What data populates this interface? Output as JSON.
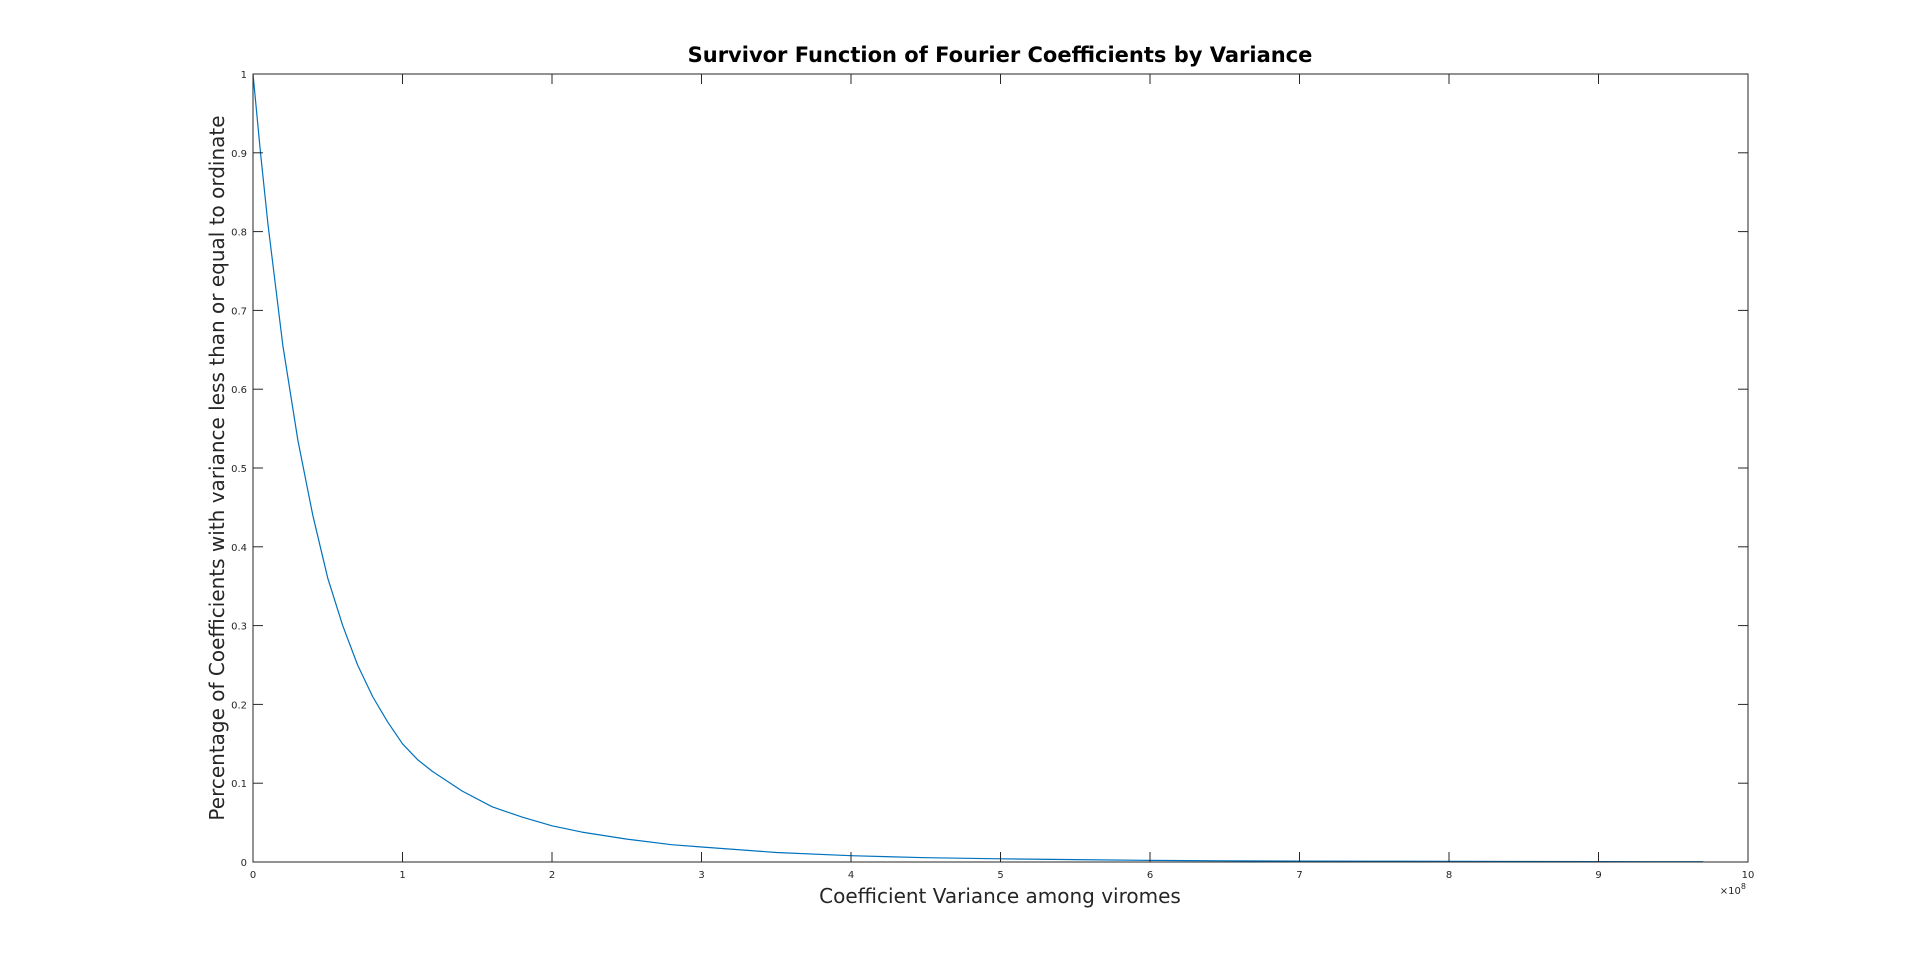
{
  "chart_data": {
    "type": "line",
    "title": "Survivor Function of Fourier Coefficients by Variance",
    "xlabel": "Coefficient Variance among viromes",
    "ylabel": "Percentage of Coefficients with variance less than or equal to ordinate",
    "x_exponent_label": "×10",
    "x_exponent_power": "8",
    "xlim": [
      0,
      10
    ],
    "ylim": [
      0,
      1
    ],
    "x_ticks": [
      "0",
      "1",
      "2",
      "3",
      "4",
      "5",
      "6",
      "7",
      "8",
      "9",
      "10"
    ],
    "y_ticks": [
      "0",
      "0.1",
      "0.2",
      "0.3",
      "0.4",
      "0.5",
      "0.6",
      "0.7",
      "0.8",
      "0.9",
      "1"
    ],
    "grid": false,
    "legend": "none",
    "line_color": "#0072BD",
    "series": [
      {
        "x": [
          0,
          0.05,
          0.1,
          0.2,
          0.3,
          0.4,
          0.5,
          0.6,
          0.7,
          0.8,
          0.9,
          1.0,
          1.1,
          1.2,
          1.4,
          1.6,
          1.8,
          2.0,
          2.2,
          2.5,
          2.8,
          3.0,
          3.5,
          4.0,
          4.5,
          5.0,
          5.5,
          6.0,
          6.5,
          7.0,
          7.5,
          8.0,
          8.5,
          9.0,
          9.5,
          9.7
        ],
        "y": [
          1.0,
          0.9,
          0.81,
          0.655,
          0.535,
          0.44,
          0.36,
          0.3,
          0.25,
          0.21,
          0.178,
          0.15,
          0.13,
          0.115,
          0.09,
          0.07,
          0.057,
          0.046,
          0.038,
          0.029,
          0.022,
          0.019,
          0.012,
          0.008,
          0.0055,
          0.004,
          0.003,
          0.002,
          0.0015,
          0.0012,
          0.001,
          0.0008,
          0.0006,
          0.0005,
          0.0004,
          0.0004
        ]
      }
    ]
  }
}
